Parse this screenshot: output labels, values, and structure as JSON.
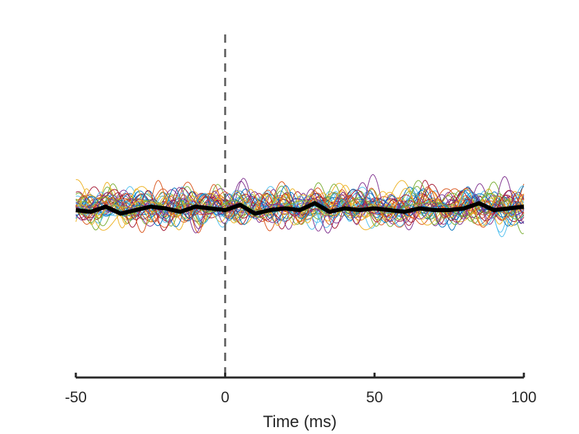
{
  "chart_data": {
    "type": "line",
    "title": "",
    "xlabel": "Time (ms)",
    "ylabel": "",
    "xlim": [
      -50,
      100
    ],
    "ylim": [
      -1,
      1
    ],
    "x_ticks": [
      -50,
      0,
      50,
      100
    ],
    "x_tick_labels": [
      "-50",
      "0",
      "50",
      "100"
    ],
    "y_axis_visible": false,
    "grid": false,
    "legend": "none",
    "trace_count": 40,
    "trace_colors": [
      "#0072BD",
      "#D95319",
      "#EDB120",
      "#7E2F8E",
      "#77AC30",
      "#4DBEEE",
      "#A2142F"
    ],
    "mean_trace_color": "#000000",
    "stimulus_marker": {
      "x": 0,
      "style": "dashed",
      "color": "#666666"
    },
    "mean_trace": {
      "x": [
        -50,
        -45,
        -40,
        -35,
        -30,
        -25,
        -20,
        -15,
        -10,
        -5,
        0,
        5,
        10,
        15,
        20,
        25,
        30,
        35,
        40,
        45,
        50,
        55,
        60,
        65,
        70,
        75,
        80,
        85,
        90,
        95,
        100
      ],
      "y": [
        -0.02,
        -0.03,
        0.0,
        -0.04,
        -0.02,
        0.0,
        -0.01,
        -0.03,
        0.0,
        -0.01,
        -0.02,
        0.01,
        -0.04,
        -0.02,
        -0.01,
        -0.02,
        0.02,
        -0.03,
        -0.01,
        -0.02,
        -0.01,
        -0.02,
        -0.03,
        -0.01,
        -0.02,
        -0.02,
        -0.01,
        0.02,
        -0.02,
        -0.01,
        0.0
      ]
    },
    "trace_amplitude": 0.1
  }
}
